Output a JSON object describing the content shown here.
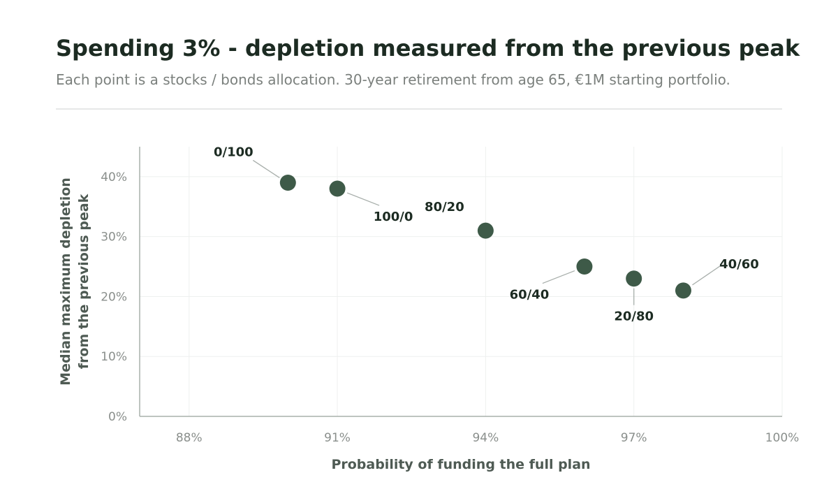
{
  "chart_data": {
    "type": "scatter",
    "title": "Spending 3% - depletion measured from the previous peak",
    "subtitle": "Each point is a stocks / bonds allocation. 30-year retirement from age 65, €1M starting portfolio.",
    "xlabel": "Probability of funding the full plan",
    "ylabel_lines": [
      "Median maximum depletion",
      "from the previous peak"
    ],
    "xlim": [
      87,
      100
    ],
    "ylim": [
      0,
      45
    ],
    "x_ticks": [
      {
        "value": 88,
        "label": "88%"
      },
      {
        "value": 91,
        "label": "91%"
      },
      {
        "value": 94,
        "label": "94%"
      },
      {
        "value": 97,
        "label": "97%"
      },
      {
        "value": 100,
        "label": "100%"
      }
    ],
    "y_ticks": [
      {
        "value": 0,
        "label": "0%"
      },
      {
        "value": 10,
        "label": "10%"
      },
      {
        "value": 20,
        "label": "20%"
      },
      {
        "value": 30,
        "label": "30%"
      },
      {
        "value": 40,
        "label": "40%"
      }
    ],
    "grid": true,
    "point_color": "#3e5a48",
    "points": [
      {
        "label": "0/100",
        "x": 90,
        "y": 39
      },
      {
        "label": "100/0",
        "x": 91,
        "y": 38
      },
      {
        "label": "80/20",
        "x": 94,
        "y": 31
      },
      {
        "label": "60/40",
        "x": 96,
        "y": 25
      },
      {
        "label": "20/80",
        "x": 97,
        "y": 23
      },
      {
        "label": "40/60",
        "x": 98,
        "y": 21
      }
    ]
  }
}
